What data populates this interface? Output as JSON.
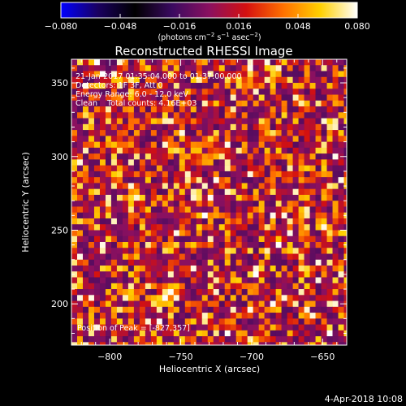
{
  "chart_data": {
    "type": "heatmap",
    "title": "Reconstructed RHESSI Image",
    "xlabel": "Heliocentric X (arcsec)",
    "ylabel": "Heliocentric Y (arcsec)",
    "xlim": [
      -827,
      -633
    ],
    "ylim": [
      172,
      366
    ],
    "x_ticks": [
      -800,
      -750,
      -700,
      -650
    ],
    "y_ticks": [
      200,
      250,
      300,
      350
    ],
    "x_tick_labels": [
      "−800",
      "−750",
      "−700",
      "−650"
    ],
    "y_tick_labels": [
      "200",
      "250",
      "300",
      "350"
    ],
    "pixel_size": 4,
    "colorbar": {
      "min": -0.08,
      "max": 0.08,
      "ticks": [
        -0.08,
        -0.048,
        -0.016,
        0.016,
        0.048,
        0.08
      ],
      "tick_labels": [
        "−0.080",
        "−0.048",
        "−0.016",
        "0.016",
        "0.048",
        "0.080"
      ],
      "unit_prefix": "(photons cm",
      "unit_exp1": "−2",
      "unit_mid": " s",
      "unit_exp2": "−1",
      "unit_mid2": " asec",
      "unit_exp3": "−2",
      "unit_suffix": ")",
      "colormap": [
        "#0000ff",
        "#1a0060",
        "#000000",
        "#3a0a60",
        "#8a1060",
        "#d41010",
        "#ff7000",
        "#ffd000",
        "#ffffff"
      ]
    },
    "annotations": [
      "21-Jan-2017 01:35:04.000 to 01:37:00.000",
      "Detectors: 1F 3F, Att 0",
      "Energy Range: 6.0 - 12.0 keV",
      "Clean    Total counts: 4.16E+03"
    ],
    "peak_label": "Position of Peak = [-827,357]",
    "peak_position": [
      -827,
      357
    ],
    "noise_seed": 7
  },
  "footer": {
    "date": "4-Apr-2018 10:08"
  }
}
